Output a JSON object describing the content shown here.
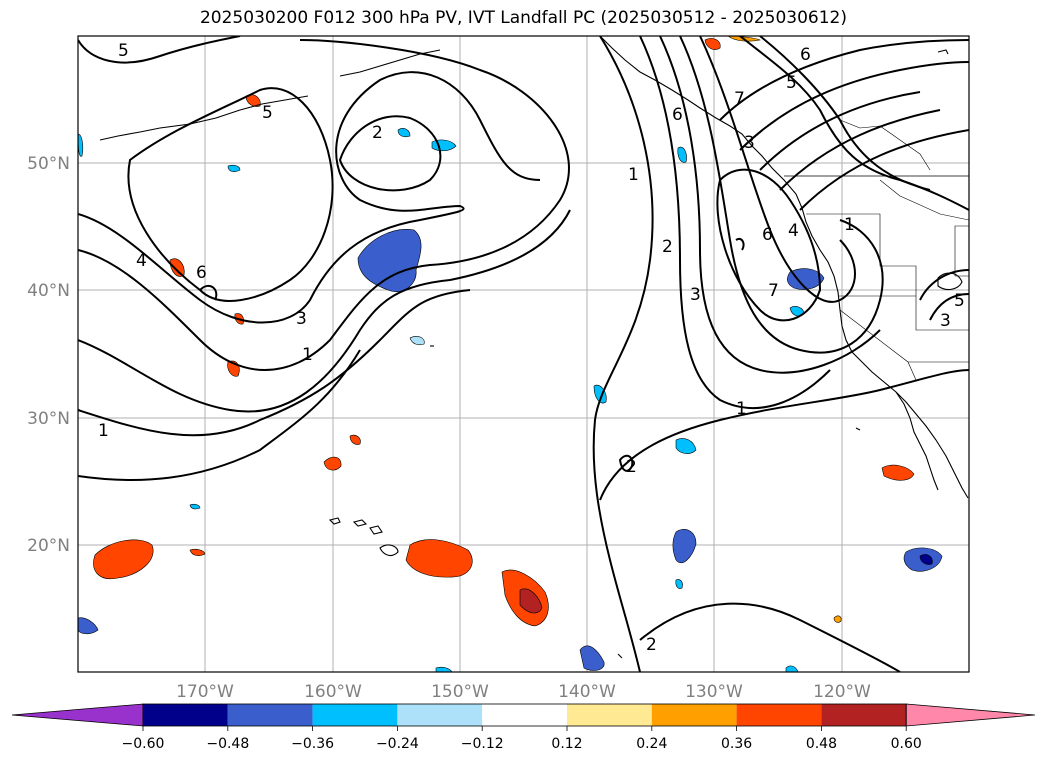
{
  "title": "2025030200 F012 300 hPa PV, IVT Landfall PC (2025030512 - 2025030612)",
  "lat_labels": [
    "50°N",
    "40°N",
    "30°N",
    "20°N"
  ],
  "lon_labels": [
    "170°W",
    "160°W",
    "150°W",
    "140°W",
    "130°W",
    "120°W"
  ],
  "colorbar": {
    "ticks": [
      "−0.60",
      "−0.48",
      "−0.36",
      "−0.24",
      "−0.12",
      "0.12",
      "0.24",
      "0.36",
      "0.48",
      "0.60"
    ],
    "colors": [
      "#9932CC",
      "#00008B",
      "#3A5FCD",
      "#00BFFF",
      "#ADE1FA",
      "#FFFFFF",
      "#FFE992",
      "#FFA000",
      "#FF4500",
      "#B22222",
      "#FF88AA"
    ]
  },
  "contour_labels": [
    "5",
    "5",
    "2",
    "1",
    "2",
    "3",
    "6",
    "7",
    "6",
    "4",
    "3",
    "1",
    "4",
    "6",
    "3",
    "1",
    "1",
    "2",
    "2",
    "1",
    "7",
    "5",
    "6",
    "3",
    "5"
  ]
}
